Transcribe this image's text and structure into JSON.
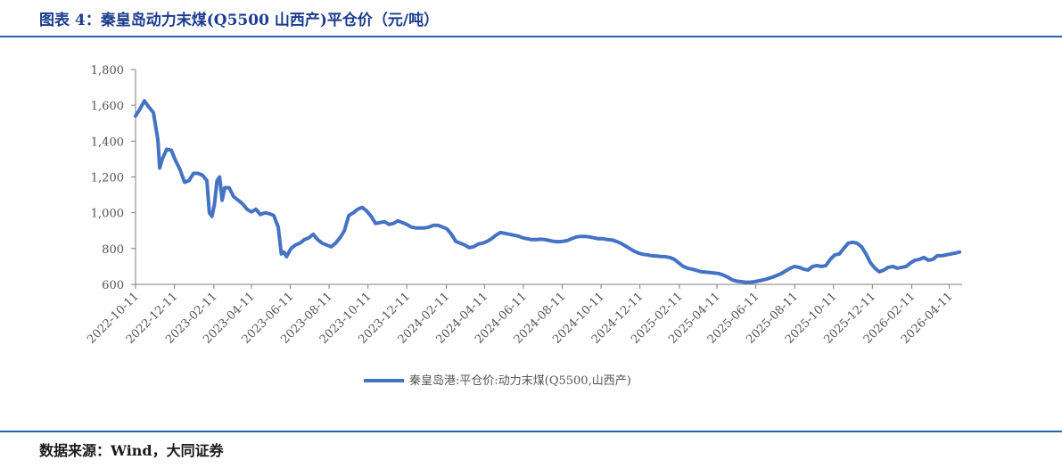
{
  "header": {
    "title": "图表 4：秦皇岛动力末煤(Q5500 山西产)平仓价（元/吨）"
  },
  "footer": {
    "source": "数据来源：Wind，大同证券"
  },
  "colors": {
    "accent": "#2a5fb6",
    "series": "#4472c4",
    "title": "#1c3d8f"
  },
  "chart_data": {
    "type": "line",
    "title": "图表 4：秦皇岛动力末煤(Q5500 山西产)平仓价（元/吨）",
    "xlabel": "",
    "ylabel": "",
    "ylim": [
      600,
      1800
    ],
    "yticks": [
      600,
      800,
      1000,
      1200,
      1400,
      1600,
      1800
    ],
    "ytick_labels": [
      "600",
      "800",
      "1,000",
      "1,200",
      "1,400",
      "1,600",
      "1,800"
    ],
    "xlim": [
      "2022-10-11",
      "2026-05-01"
    ],
    "xticks": [
      "2022-10-11",
      "2022-12-11",
      "2023-02-11",
      "2023-04-11",
      "2023-06-11",
      "2023-08-11",
      "2023-10-11",
      "2023-12-11",
      "2024-02-11",
      "2024-04-11",
      "2024-06-11",
      "2024-08-11",
      "2024-10-11",
      "2024-12-11",
      "2025-02-11",
      "2025-04-11",
      "2025-06-11",
      "2025-08-11",
      "2025-10-11",
      "2025-12-11",
      "2026-02-11",
      "2026-04-11"
    ],
    "grid": false,
    "legend_position": "bottom-center",
    "series": [
      {
        "name": "秦皇岛港:平仓价:动力末煤(Q5500,山西产)",
        "points": [
          [
            "2022-10-11",
            1540
          ],
          [
            "2022-10-18",
            1580
          ],
          [
            "2022-10-25",
            1625
          ],
          [
            "2022-11-01",
            1590
          ],
          [
            "2022-11-08",
            1560
          ],
          [
            "2022-11-15",
            1410
          ],
          [
            "2022-11-18",
            1250
          ],
          [
            "2022-11-22",
            1300
          ],
          [
            "2022-11-29",
            1355
          ],
          [
            "2022-12-06",
            1350
          ],
          [
            "2022-12-13",
            1290
          ],
          [
            "2022-12-20",
            1240
          ],
          [
            "2022-12-27",
            1170
          ],
          [
            "2023-01-03",
            1180
          ],
          [
            "2023-01-10",
            1220
          ],
          [
            "2023-01-17",
            1220
          ],
          [
            "2023-01-24",
            1210
          ],
          [
            "2023-01-31",
            1180
          ],
          [
            "2023-02-04",
            1000
          ],
          [
            "2023-02-08",
            980
          ],
          [
            "2023-02-12",
            1050
          ],
          [
            "2023-02-16",
            1180
          ],
          [
            "2023-02-20",
            1200
          ],
          [
            "2023-02-24",
            1070
          ],
          [
            "2023-02-28",
            1140
          ],
          [
            "2023-03-07",
            1140
          ],
          [
            "2023-03-14",
            1090
          ],
          [
            "2023-03-21",
            1070
          ],
          [
            "2023-03-28",
            1050
          ],
          [
            "2023-04-04",
            1020
          ],
          [
            "2023-04-11",
            1005
          ],
          [
            "2023-04-18",
            1020
          ],
          [
            "2023-04-25",
            990
          ],
          [
            "2023-05-02",
            1000
          ],
          [
            "2023-05-09",
            995
          ],
          [
            "2023-05-16",
            985
          ],
          [
            "2023-05-23",
            920
          ],
          [
            "2023-05-28",
            770
          ],
          [
            "2023-06-01",
            780
          ],
          [
            "2023-06-05",
            755
          ],
          [
            "2023-06-12",
            800
          ],
          [
            "2023-06-19",
            820
          ],
          [
            "2023-06-26",
            830
          ],
          [
            "2023-07-03",
            850
          ],
          [
            "2023-07-10",
            860
          ],
          [
            "2023-07-17",
            880
          ],
          [
            "2023-07-24",
            850
          ],
          [
            "2023-07-31",
            830
          ],
          [
            "2023-08-07",
            820
          ],
          [
            "2023-08-14",
            810
          ],
          [
            "2023-08-21",
            830
          ],
          [
            "2023-08-28",
            860
          ],
          [
            "2023-09-04",
            900
          ],
          [
            "2023-09-11",
            985
          ],
          [
            "2023-09-18",
            1000
          ],
          [
            "2023-09-25",
            1020
          ],
          [
            "2023-10-02",
            1030
          ],
          [
            "2023-10-09",
            1010
          ],
          [
            "2023-10-16",
            980
          ],
          [
            "2023-10-23",
            940
          ],
          [
            "2023-10-30",
            945
          ],
          [
            "2023-11-06",
            950
          ],
          [
            "2023-11-13",
            935
          ],
          [
            "2023-11-20",
            940
          ],
          [
            "2023-11-27",
            955
          ],
          [
            "2023-12-04",
            945
          ],
          [
            "2023-12-11",
            935
          ],
          [
            "2023-12-18",
            920
          ],
          [
            "2023-12-25",
            915
          ],
          [
            "2024-01-01",
            915
          ],
          [
            "2024-01-08",
            915
          ],
          [
            "2024-01-15",
            920
          ],
          [
            "2024-01-22",
            930
          ],
          [
            "2024-01-29",
            930
          ],
          [
            "2024-02-05",
            920
          ],
          [
            "2024-02-12",
            910
          ],
          [
            "2024-02-19",
            880
          ],
          [
            "2024-02-26",
            840
          ],
          [
            "2024-03-04",
            830
          ],
          [
            "2024-03-11",
            820
          ],
          [
            "2024-03-18",
            805
          ],
          [
            "2024-03-25",
            810
          ],
          [
            "2024-04-01",
            825
          ],
          [
            "2024-04-08",
            830
          ],
          [
            "2024-04-15",
            840
          ],
          [
            "2024-04-22",
            855
          ],
          [
            "2024-04-29",
            875
          ],
          [
            "2024-05-06",
            890
          ],
          [
            "2024-05-13",
            885
          ],
          [
            "2024-05-20",
            880
          ],
          [
            "2024-05-27",
            875
          ],
          [
            "2024-06-03",
            870
          ],
          [
            "2024-06-10",
            860
          ],
          [
            "2024-06-17",
            855
          ],
          [
            "2024-06-24",
            850
          ],
          [
            "2024-07-01",
            850
          ],
          [
            "2024-07-08",
            852
          ],
          [
            "2024-07-15",
            850
          ],
          [
            "2024-07-22",
            845
          ],
          [
            "2024-07-29",
            840
          ],
          [
            "2024-08-05",
            838
          ],
          [
            "2024-08-12",
            840
          ],
          [
            "2024-08-19",
            845
          ],
          [
            "2024-08-26",
            855
          ],
          [
            "2024-09-02",
            865
          ],
          [
            "2024-09-09",
            868
          ],
          [
            "2024-09-16",
            868
          ],
          [
            "2024-09-23",
            865
          ],
          [
            "2024-09-30",
            860
          ],
          [
            "2024-10-07",
            855
          ],
          [
            "2024-10-14",
            855
          ],
          [
            "2024-10-21",
            850
          ],
          [
            "2024-10-28",
            848
          ],
          [
            "2024-11-04",
            840
          ],
          [
            "2024-11-11",
            830
          ],
          [
            "2024-11-18",
            815
          ],
          [
            "2024-11-25",
            800
          ],
          [
            "2024-12-02",
            785
          ],
          [
            "2024-12-09",
            775
          ],
          [
            "2024-12-16",
            768
          ],
          [
            "2024-12-23",
            765
          ],
          [
            "2024-12-30",
            760
          ],
          [
            "2025-01-06",
            758
          ],
          [
            "2025-01-13",
            756
          ],
          [
            "2025-01-20",
            755
          ],
          [
            "2025-01-27",
            750
          ],
          [
            "2025-02-03",
            740
          ],
          [
            "2025-02-10",
            720
          ],
          [
            "2025-02-17",
            700
          ],
          [
            "2025-02-24",
            690
          ],
          [
            "2025-03-03",
            685
          ],
          [
            "2025-03-10",
            678
          ],
          [
            "2025-03-17",
            670
          ],
          [
            "2025-03-24",
            668
          ],
          [
            "2025-03-31",
            666
          ],
          [
            "2025-04-07",
            663
          ],
          [
            "2025-04-14",
            660
          ],
          [
            "2025-04-21",
            652
          ],
          [
            "2025-04-28",
            640
          ],
          [
            "2025-05-05",
            625
          ],
          [
            "2025-05-12",
            618
          ],
          [
            "2025-05-19",
            615
          ],
          [
            "2025-05-26",
            612
          ],
          [
            "2025-06-02",
            612
          ],
          [
            "2025-06-09",
            615
          ],
          [
            "2025-06-16",
            620
          ],
          [
            "2025-06-23",
            625
          ],
          [
            "2025-06-30",
            632
          ],
          [
            "2025-07-07",
            640
          ],
          [
            "2025-07-14",
            650
          ],
          [
            "2025-07-21",
            660
          ],
          [
            "2025-07-28",
            675
          ],
          [
            "2025-08-04",
            690
          ],
          [
            "2025-08-11",
            700
          ],
          [
            "2025-08-18",
            695
          ],
          [
            "2025-08-25",
            685
          ],
          [
            "2025-09-01",
            680
          ],
          [
            "2025-09-08",
            700
          ],
          [
            "2025-09-15",
            705
          ],
          [
            "2025-09-22",
            700
          ],
          [
            "2025-09-29",
            705
          ],
          [
            "2025-10-06",
            740
          ],
          [
            "2025-10-13",
            765
          ],
          [
            "2025-10-20",
            770
          ],
          [
            "2025-10-27",
            800
          ],
          [
            "2025-11-03",
            830
          ],
          [
            "2025-11-10",
            835
          ],
          [
            "2025-11-17",
            830
          ],
          [
            "2025-11-24",
            810
          ],
          [
            "2025-12-01",
            770
          ],
          [
            "2025-12-08",
            720
          ],
          [
            "2025-12-15",
            690
          ],
          [
            "2025-12-22",
            670
          ],
          [
            "2025-12-29",
            680
          ],
          [
            "2026-01-05",
            695
          ],
          [
            "2026-01-12",
            700
          ],
          [
            "2026-01-19",
            690
          ],
          [
            "2026-01-26",
            695
          ],
          [
            "2026-02-02",
            700
          ],
          [
            "2026-02-09",
            720
          ],
          [
            "2026-02-16",
            735
          ],
          [
            "2026-02-23",
            740
          ],
          [
            "2026-03-02",
            750
          ],
          [
            "2026-03-09",
            735
          ],
          [
            "2026-03-16",
            740
          ],
          [
            "2026-03-23",
            760
          ],
          [
            "2026-03-30",
            760
          ],
          [
            "2026-04-06",
            765
          ],
          [
            "2026-04-13",
            770
          ],
          [
            "2026-04-20",
            775
          ],
          [
            "2026-04-27",
            780
          ]
        ]
      }
    ]
  }
}
